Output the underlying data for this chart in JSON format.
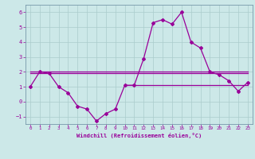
{
  "xlabel": "Windchill (Refroidissement éolien,°C)",
  "bg_color": "#cce8e8",
  "grid_color": "#aacccc",
  "line_color": "#990099",
  "xlim": [
    -0.5,
    23.5
  ],
  "ylim": [
    -1.5,
    6.5
  ],
  "xticks": [
    0,
    1,
    2,
    3,
    4,
    5,
    6,
    7,
    8,
    9,
    10,
    11,
    12,
    13,
    14,
    15,
    16,
    17,
    18,
    19,
    20,
    21,
    22,
    23
  ],
  "yticks": [
    -1,
    0,
    1,
    2,
    3,
    4,
    5,
    6
  ],
  "series1_x": [
    0,
    1,
    2,
    3,
    4,
    5,
    6,
    7,
    8,
    9,
    10,
    11,
    12,
    13,
    14,
    15,
    16,
    17,
    18,
    19,
    20,
    21,
    22,
    23
  ],
  "series1_y": [
    1,
    2,
    1.9,
    1,
    0.6,
    -0.3,
    -0.5,
    -1.3,
    -0.8,
    -0.5,
    1.1,
    1.1,
    2.9,
    5.3,
    5.5,
    5.2,
    6.0,
    4.0,
    3.6,
    2.0,
    1.8,
    1.4,
    0.7,
    1.3
  ],
  "hline1_x": [
    0,
    23
  ],
  "hline1_y": [
    2.0,
    2.0
  ],
  "hline2_x": [
    0,
    23
  ],
  "hline2_y": [
    1.9,
    1.9
  ],
  "hline3_x": [
    2,
    23
  ],
  "hline3_y": [
    1.9,
    1.9
  ],
  "hline4_x": [
    10,
    23
  ],
  "hline4_y": [
    1.1,
    1.1
  ]
}
